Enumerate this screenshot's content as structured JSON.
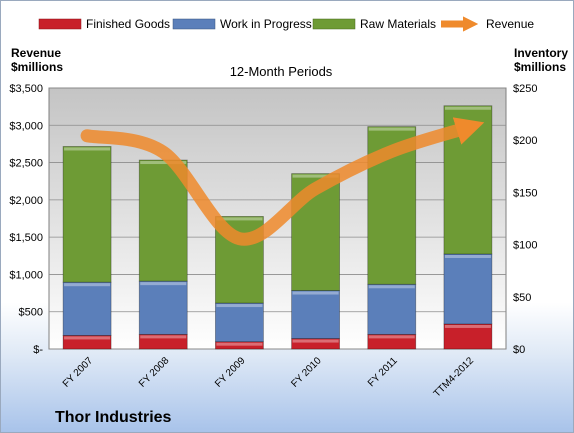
{
  "chart_data": {
    "type": "bar",
    "stacked": true,
    "title": "12-Month Periods",
    "categories": [
      "FY 2007",
      "FY 2008",
      "FY 2009",
      "FY 2010",
      "FY 2011",
      "TTM4-2012"
    ],
    "series": [
      {
        "name": "Finished Goods",
        "axis": "right",
        "color": "#c8202a",
        "values": [
          13,
          14,
          7,
          10,
          14,
          24
        ]
      },
      {
        "name": "Work in Progress",
        "axis": "right",
        "color": "#5b7fba",
        "values": [
          51,
          51,
          37,
          46,
          48,
          67
        ]
      },
      {
        "name": "Raw Materials",
        "axis": "right",
        "color": "#6e9b35",
        "values": [
          130,
          116,
          83,
          112,
          151,
          142
        ]
      },
      {
        "name": "Revenue",
        "axis": "left",
        "type": "line",
        "color": "#ef8a2c",
        "values": [
          2860,
          2640,
          1480,
          2150,
          2650,
          2970
        ]
      }
    ],
    "left_axis": {
      "label_line1": "Revenue",
      "label_line2": "$millions",
      "ylim": [
        0,
        3500
      ],
      "ticks": [
        "$3,500",
        "$3,000",
        "$2,500",
        "$2,000",
        "$1,500",
        "$1,000",
        "$500",
        "$-"
      ]
    },
    "right_axis": {
      "label_line1": "Inventory",
      "label_line2": "$millions",
      "ylim": [
        0,
        250
      ],
      "ticks": [
        "$250",
        "$200",
        "$150",
        "$100",
        "$50",
        "$0"
      ]
    },
    "legend_position": "top",
    "grid": true
  },
  "footer_title": "Thor Industries"
}
